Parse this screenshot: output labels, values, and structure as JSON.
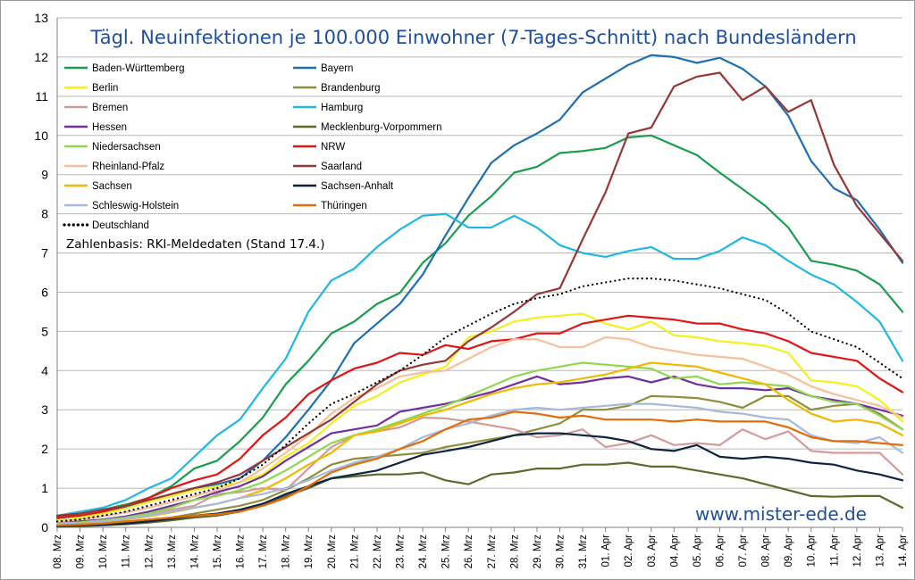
{
  "chart_data": {
    "type": "line",
    "title": "Tägl. Neuinfektionen je 100.000 Einwohner (7-Tages-Schnitt) nach Bundesländern",
    "note": "Zahlenbasis: RKI-Meldedaten (Stand 17.4.)",
    "watermark": "www.mister-ede.de",
    "ylim": [
      0,
      13
    ],
    "yticks": [
      "0",
      "1",
      "2",
      "3",
      "4",
      "5",
      "6",
      "7",
      "8",
      "9",
      "10",
      "11",
      "12",
      "13"
    ],
    "grid": true,
    "legend_position": "top-left",
    "categories": [
      "08. Mrz",
      "09. Mrz",
      "10. Mrz",
      "11. Mrz",
      "12. Mrz",
      "13. Mrz",
      "14. Mrz",
      "15. Mrz",
      "16. Mrz",
      "17. Mrz",
      "18. Mrz",
      "19. Mrz",
      "20. Mrz",
      "21. Mrz",
      "22. Mrz",
      "23. Mrz",
      "24. Mrz",
      "25. Mrz",
      "26. Mrz",
      "27. Mrz",
      "28. Mrz",
      "29. Mrz",
      "30. Mrz",
      "31. Mrz",
      "01. Apr",
      "02. Apr",
      "03. Apr",
      "04. Apr",
      "05. Apr",
      "06. Apr",
      "07. Apr",
      "08. Apr",
      "09. Apr",
      "10. Apr",
      "11. Apr",
      "12. Apr",
      "13. Apr",
      "14. Apr"
    ],
    "series": [
      {
        "name": "Baden-Württemberg",
        "color": "#1a9d4c",
        "dashed": false,
        "values": [
          0.28,
          0.35,
          0.45,
          0.58,
          0.75,
          1.05,
          1.5,
          1.7,
          2.2,
          2.8,
          3.65,
          4.25,
          4.95,
          5.25,
          5.7,
          5.98,
          6.75,
          7.25,
          7.95,
          8.45,
          9.05,
          9.2,
          9.55,
          9.6,
          9.68,
          9.95,
          10.0,
          9.75,
          9.5,
          9.05,
          8.63,
          8.2,
          7.65,
          6.8,
          6.7,
          6.55,
          6.2,
          5.5
        ]
      },
      {
        "name": "Bayern",
        "color": "#1f6fb3",
        "dashed": false,
        "values": [
          0.2,
          0.25,
          0.35,
          0.5,
          0.65,
          0.85,
          1.0,
          1.1,
          1.25,
          1.7,
          2.3,
          3.0,
          3.75,
          4.7,
          5.2,
          5.7,
          6.45,
          7.45,
          8.4,
          9.3,
          9.75,
          10.05,
          10.4,
          11.1,
          11.45,
          11.8,
          12.05,
          12.0,
          11.85,
          11.98,
          11.7,
          11.25,
          10.5,
          9.35,
          8.65,
          8.35,
          7.6,
          6.75
        ]
      },
      {
        "name": "Berlin",
        "color": "#f2f21b",
        "dashed": false,
        "values": [
          0.18,
          0.25,
          0.35,
          0.48,
          0.65,
          0.8,
          0.95,
          1.05,
          1.15,
          1.35,
          1.8,
          2.15,
          2.65,
          3.1,
          3.35,
          3.7,
          3.9,
          4.1,
          4.85,
          5.0,
          5.25,
          5.35,
          5.4,
          5.45,
          5.2,
          5.05,
          5.25,
          4.9,
          4.85,
          4.75,
          4.7,
          4.63,
          4.45,
          3.75,
          3.7,
          3.6,
          3.25,
          2.7
        ]
      },
      {
        "name": "Brandenburg",
        "color": "#8e8e3c",
        "dashed": false,
        "values": [
          0.05,
          0.06,
          0.08,
          0.12,
          0.18,
          0.25,
          0.35,
          0.45,
          0.55,
          0.7,
          0.95,
          1.25,
          1.6,
          1.75,
          1.8,
          1.85,
          1.9,
          2.05,
          2.15,
          2.25,
          2.35,
          2.5,
          2.65,
          3.0,
          3.0,
          3.1,
          3.35,
          3.33,
          3.3,
          3.2,
          3.05,
          3.35,
          3.35,
          3.0,
          3.1,
          3.15,
          2.9,
          2.5
        ]
      },
      {
        "name": "Bremen",
        "color": "#d49b9b",
        "dashed": false,
        "values": [
          0.1,
          0.12,
          0.15,
          0.2,
          0.3,
          0.45,
          0.55,
          0.85,
          0.9,
          1.0,
          0.95,
          1.5,
          2.05,
          2.35,
          2.45,
          2.55,
          2.8,
          2.78,
          2.7,
          2.6,
          2.5,
          2.3,
          2.35,
          2.5,
          2.05,
          2.15,
          2.35,
          2.1,
          2.15,
          2.1,
          2.5,
          2.25,
          2.45,
          1.95,
          1.9,
          1.9,
          1.9,
          1.35
        ]
      },
      {
        "name": "Hamburg",
        "color": "#21b7e4",
        "dashed": false,
        "values": [
          0.3,
          0.4,
          0.5,
          0.7,
          1.0,
          1.25,
          1.8,
          2.35,
          2.75,
          3.55,
          4.3,
          5.5,
          6.3,
          6.6,
          7.15,
          7.6,
          7.95,
          8.0,
          7.65,
          7.65,
          7.95,
          7.65,
          7.2,
          7.0,
          6.9,
          7.05,
          7.15,
          6.85,
          6.85,
          7.05,
          7.4,
          7.2,
          6.8,
          6.45,
          6.2,
          5.75,
          5.25,
          4.25
        ]
      },
      {
        "name": "Hessen",
        "color": "#7030a0",
        "dashed": false,
        "values": [
          0.12,
          0.15,
          0.2,
          0.28,
          0.4,
          0.55,
          0.7,
          0.9,
          1.05,
          1.3,
          1.7,
          2.05,
          2.4,
          2.5,
          2.6,
          2.95,
          3.05,
          3.15,
          3.3,
          3.45,
          3.65,
          3.85,
          3.65,
          3.7,
          3.8,
          3.85,
          3.7,
          3.85,
          3.65,
          3.55,
          3.55,
          3.5,
          3.55,
          3.35,
          3.25,
          3.15,
          3.0,
          2.85
        ]
      },
      {
        "name": "Mecklenburg-Vorpommern",
        "color": "#5a6b2a",
        "dashed": false,
        "values": [
          0.02,
          0.03,
          0.05,
          0.08,
          0.12,
          0.18,
          0.25,
          0.3,
          0.4,
          0.6,
          0.8,
          1.0,
          1.25,
          1.3,
          1.35,
          1.35,
          1.4,
          1.2,
          1.1,
          1.35,
          1.4,
          1.5,
          1.5,
          1.6,
          1.6,
          1.65,
          1.55,
          1.55,
          1.45,
          1.35,
          1.25,
          1.1,
          0.95,
          0.8,
          0.78,
          0.8,
          0.8,
          0.5
        ]
      },
      {
        "name": "Niedersachsen",
        "color": "#8ed84e",
        "dashed": false,
        "values": [
          0.1,
          0.13,
          0.18,
          0.25,
          0.35,
          0.5,
          0.7,
          0.8,
          0.95,
          1.15,
          1.45,
          1.8,
          2.15,
          2.35,
          2.5,
          2.7,
          2.9,
          3.1,
          3.35,
          3.6,
          3.85,
          4.0,
          4.1,
          4.2,
          4.15,
          4.1,
          4.05,
          3.8,
          3.85,
          3.65,
          3.7,
          3.65,
          3.6,
          3.35,
          3.2,
          3.15,
          2.85,
          2.5
        ]
      },
      {
        "name": "NRW",
        "color": "#e31414",
        "dashed": false,
        "values": [
          0.25,
          0.3,
          0.4,
          0.55,
          0.75,
          1.0,
          1.2,
          1.35,
          1.75,
          2.35,
          2.8,
          3.4,
          3.75,
          4.05,
          4.2,
          4.45,
          4.4,
          4.65,
          4.55,
          4.75,
          4.8,
          4.95,
          4.95,
          5.2,
          5.3,
          5.4,
          5.35,
          5.3,
          5.2,
          5.2,
          5.05,
          4.95,
          4.75,
          4.45,
          4.35,
          4.25,
          3.8,
          3.45
        ]
      },
      {
        "name": "Rheinland-Pfalz",
        "color": "#f7bf9a",
        "dashed": false,
        "values": [
          0.15,
          0.2,
          0.28,
          0.38,
          0.5,
          0.65,
          0.8,
          0.95,
          1.15,
          1.5,
          1.9,
          2.35,
          2.9,
          3.3,
          3.55,
          3.85,
          3.95,
          4.0,
          4.3,
          4.6,
          4.8,
          4.8,
          4.6,
          4.6,
          4.85,
          4.8,
          4.6,
          4.5,
          4.4,
          4.35,
          4.3,
          4.1,
          3.9,
          3.6,
          3.4,
          3.25,
          3.1,
          2.8
        ]
      },
      {
        "name": "Saarland",
        "color": "#953735",
        "dashed": false,
        "values": [
          0.3,
          0.35,
          0.45,
          0.55,
          0.7,
          0.85,
          1.0,
          1.15,
          1.35,
          1.7,
          2.05,
          2.4,
          2.75,
          3.2,
          3.65,
          4.0,
          4.15,
          4.25,
          4.75,
          5.1,
          5.5,
          5.95,
          6.1,
          7.35,
          8.55,
          10.05,
          10.2,
          11.25,
          11.5,
          11.6,
          10.9,
          11.25,
          10.6,
          10.9,
          9.25,
          8.2,
          7.5,
          6.8
        ]
      },
      {
        "name": "Sachsen",
        "color": "#f0b800",
        "dashed": false,
        "values": [
          0.08,
          0.1,
          0.15,
          0.2,
          0.28,
          0.38,
          0.5,
          0.6,
          0.75,
          0.95,
          1.25,
          1.6,
          1.9,
          2.35,
          2.45,
          2.65,
          2.85,
          3.0,
          3.2,
          3.4,
          3.55,
          3.65,
          3.7,
          3.8,
          3.9,
          4.05,
          4.2,
          4.15,
          4.1,
          3.95,
          3.8,
          3.65,
          3.25,
          2.9,
          2.7,
          2.75,
          2.65,
          2.35
        ]
      },
      {
        "name": "Sachsen-Anhalt",
        "color": "#0f2441",
        "dashed": false,
        "values": [
          0.03,
          0.05,
          0.07,
          0.1,
          0.15,
          0.22,
          0.3,
          0.35,
          0.45,
          0.6,
          0.85,
          1.05,
          1.25,
          1.35,
          1.45,
          1.65,
          1.85,
          1.95,
          2.05,
          2.2,
          2.35,
          2.4,
          2.4,
          2.35,
          2.3,
          2.2,
          2.0,
          1.95,
          2.1,
          1.8,
          1.75,
          1.8,
          1.75,
          1.65,
          1.6,
          1.45,
          1.35,
          1.2
        ]
      },
      {
        "name": "Schleswig-Holstein",
        "color": "#a7b9d8",
        "dashed": false,
        "values": [
          0.08,
          0.1,
          0.15,
          0.22,
          0.3,
          0.4,
          0.5,
          0.6,
          0.75,
          0.85,
          1.0,
          1.2,
          1.45,
          1.65,
          1.8,
          2.0,
          2.3,
          2.5,
          2.65,
          2.85,
          3.0,
          3.05,
          3.0,
          3.05,
          3.1,
          3.15,
          3.15,
          3.1,
          3.05,
          2.95,
          2.9,
          2.8,
          2.75,
          2.35,
          2.2,
          2.15,
          2.3,
          1.9
        ]
      },
      {
        "name": "Thüringen",
        "color": "#e46c0a",
        "dashed": false,
        "values": [
          0.05,
          0.07,
          0.1,
          0.15,
          0.2,
          0.25,
          0.3,
          0.33,
          0.4,
          0.55,
          0.75,
          1.05,
          1.4,
          1.6,
          1.75,
          2.0,
          2.2,
          2.5,
          2.75,
          2.8,
          2.95,
          2.9,
          2.8,
          2.85,
          2.75,
          2.75,
          2.75,
          2.7,
          2.75,
          2.7,
          2.7,
          2.7,
          2.55,
          2.3,
          2.2,
          2.2,
          2.15,
          2.1
        ]
      },
      {
        "name": "Deutschland",
        "color": "#000000",
        "dashed": true,
        "values": [
          0.15,
          0.2,
          0.3,
          0.4,
          0.55,
          0.7,
          0.85,
          1.0,
          1.25,
          1.6,
          2.1,
          2.65,
          3.15,
          3.4,
          3.7,
          4.0,
          4.4,
          4.85,
          5.15,
          5.45,
          5.7,
          5.85,
          5.95,
          6.15,
          6.25,
          6.35,
          6.35,
          6.3,
          6.2,
          6.1,
          5.95,
          5.8,
          5.45,
          5.0,
          4.8,
          4.6,
          4.2,
          3.8
        ]
      }
    ]
  }
}
